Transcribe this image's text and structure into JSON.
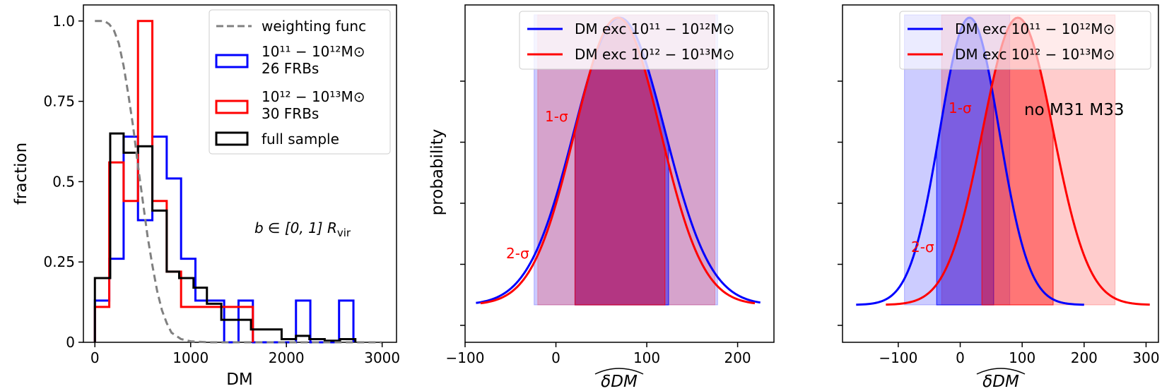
{
  "chart_data": [
    {
      "type": "histogram",
      "xlabel": "DM",
      "ylabel": "fraction",
      "xlim": [
        -120,
        3150
      ],
      "ylim": [
        0,
        1.05
      ],
      "xticks": [
        "0",
        "1000",
        "2000",
        "3000"
      ],
      "xtick_values": [
        0,
        1000,
        2000,
        3000
      ],
      "yticks": [
        "0",
        "0.25",
        "0.5",
        "0.75",
        "1.0"
      ],
      "ytick_values": [
        0,
        0.25,
        0.5,
        0.75,
        1.0
      ],
      "annotation": {
        "prefix": "b ∈ [0, 1] R",
        "sub": "vir"
      },
      "legend": {
        "placement": "top-right",
        "entries": [
          {
            "key": "weighting",
            "line1": "weighting func",
            "line2": ""
          },
          {
            "key": "low",
            "line1": "10¹¹ − 10¹²M⊙",
            "line2": "26 FRBs"
          },
          {
            "key": "high",
            "line1": "10¹² − 10¹³M⊙",
            "line2": "30 FRBs"
          },
          {
            "key": "full",
            "line1": "full sample",
            "line2": ""
          }
        ]
      },
      "weighting_func": {
        "name": "weighting func",
        "color": "#808080",
        "x": [
          0,
          100,
          150,
          200,
          250,
          300,
          350,
          400,
          450,
          500,
          550,
          600,
          650,
          700,
          750,
          800,
          900,
          1000,
          1200,
          1600,
          2000,
          3000
        ],
        "y": [
          1.0,
          1.0,
          0.99,
          0.97,
          0.93,
          0.86,
          0.77,
          0.67,
          0.55,
          0.44,
          0.33,
          0.24,
          0.16,
          0.1,
          0.06,
          0.03,
          0.01,
          0.003,
          0.0,
          0.0,
          0.0,
          0.0
        ]
      },
      "series": [
        {
          "name": "10¹¹ − 10¹²M⊙",
          "color": "#0000ff",
          "edges": [
            0,
            150,
            300,
            450,
            600,
            750,
            900,
            1050,
            1200,
            1350,
            1500,
            1650,
            1800,
            1950,
            2100,
            2250,
            2400,
            2550,
            2700
          ],
          "values": [
            0.13,
            0.26,
            0.64,
            0.38,
            0.64,
            0.51,
            0.26,
            0.13,
            0.13,
            0.0,
            0.13,
            0.0,
            0.0,
            0.0,
            0.13,
            0.0,
            0.0,
            0.13
          ]
        },
        {
          "name": "10¹² − 10¹³M⊙",
          "color": "#ff0000",
          "edges": [
            0,
            150,
            300,
            450,
            600,
            750,
            900,
            1050,
            1200,
            1350,
            1500,
            1650
          ],
          "values": [
            0.11,
            0.56,
            0.44,
            1.0,
            0.44,
            0.22,
            0.11,
            0.11,
            0.11,
            0.11,
            0.11
          ]
        },
        {
          "name": "full sample",
          "color": "#000000",
          "edges": [
            0,
            160,
            300,
            450,
            600,
            750,
            880,
            1030,
            1170,
            1320,
            1630,
            1950,
            2100,
            2240,
            2400,
            2560,
            2720
          ],
          "values": [
            0.2,
            0.65,
            0.59,
            0.61,
            0.41,
            0.22,
            0.2,
            0.17,
            0.12,
            0.07,
            0.04,
            0.01,
            0.02,
            0.01,
            0.005,
            0.01
          ]
        }
      ]
    },
    {
      "type": "area",
      "xlabel": "δDM",
      "ylabel": "probability",
      "xlim": [
        -100,
        240
      ],
      "xticks": [
        "−100",
        "0",
        "100",
        "200"
      ],
      "xtick_values": [
        -100,
        0,
        100,
        200
      ],
      "legend": {
        "placement": "top-right",
        "entries": [
          {
            "key": "low",
            "text": "DM exc 10¹¹ − 10¹²M⊙"
          },
          {
            "key": "high",
            "text": "DM exc 10¹² − 10¹³M⊙"
          }
        ]
      },
      "annotations": [
        "1-σ",
        "2-σ"
      ],
      "series": [
        {
          "name": "DM exc 10¹¹ − 10¹²M⊙",
          "color": "#0000ff",
          "mean": 70,
          "sigma": 50,
          "x_range": [
            -88,
            225
          ],
          "one_sigma": [
            21,
            124
          ],
          "two_sigma": [
            -24,
            178
          ]
        },
        {
          "name": "DM exc 10¹² − 10¹³M⊙",
          "color": "#ff0000",
          "mean": 68,
          "sigma": 47,
          "x_range": [
            -83,
            219
          ],
          "one_sigma": [
            21,
            120
          ],
          "two_sigma": [
            -20,
            175
          ]
        }
      ]
    },
    {
      "type": "area",
      "xlabel": "δDM",
      "xlim": [
        -190,
        320
      ],
      "xticks": [
        "−100",
        "0",
        "100",
        "200",
        "300"
      ],
      "xtick_values": [
        -100,
        0,
        100,
        200,
        300
      ],
      "legend": {
        "placement": "top-right",
        "entries": [
          {
            "key": "low",
            "text": "DM exc 10¹¹ − 10¹²M⊙"
          },
          {
            "key": "high",
            "text": "DM exc 10¹² − 10¹³M⊙"
          }
        ]
      },
      "annotations": [
        "1-σ",
        "2-σ",
        "no M31 M33"
      ],
      "series": [
        {
          "name": "DM exc 10¹¹ − 10¹²M⊙",
          "color": "#0000ff",
          "mean": 15,
          "sigma": 48,
          "x_range": [
            -168,
            200
          ],
          "one_sigma": [
            -38,
            54
          ],
          "two_sigma": [
            -90,
            80
          ]
        },
        {
          "name": "DM exc 10¹² − 10¹³M⊙",
          "color": "#ff0000",
          "mean": 93,
          "sigma": 57,
          "x_range": [
            -120,
            306
          ],
          "one_sigma": [
            35,
            150
          ],
          "two_sigma": [
            -30,
            250
          ]
        }
      ]
    }
  ],
  "colors": {
    "low": "#0000ff",
    "high": "#ff0000",
    "full": "#000000",
    "weighting": "#808080"
  }
}
